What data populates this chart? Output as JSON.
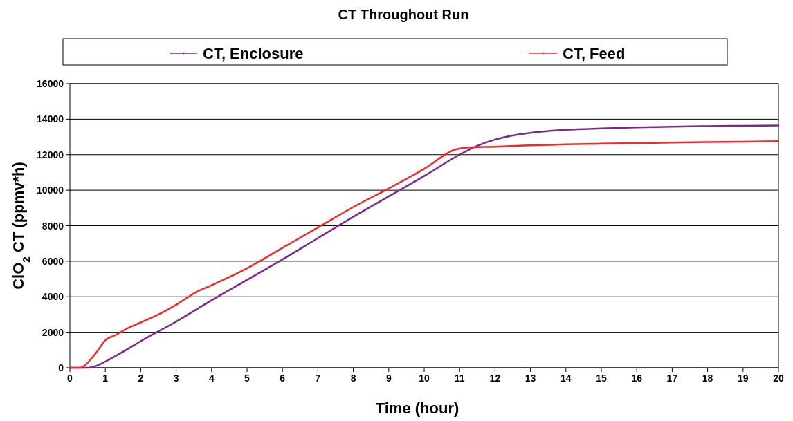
{
  "chart_data": {
    "type": "line",
    "title": "CT Throughout Run",
    "xlabel": "Time (hour)",
    "ylabel": "ClO$_{2}$ CT (ppmv*h)",
    "xlim": [
      0,
      20
    ],
    "xticks": [
      0,
      1,
      2,
      3,
      4,
      5,
      6,
      7,
      8,
      9,
      10,
      11,
      12,
      13,
      14,
      15,
      16,
      17,
      18,
      19,
      20
    ],
    "ylim": [
      0,
      16000
    ],
    "yticks": [
      0,
      2000,
      4000,
      6000,
      8000,
      10000,
      12000,
      14000,
      16000
    ],
    "grid": "y",
    "legend": "top",
    "marker": "none",
    "line_style": "solid",
    "series": [
      {
        "name": "CT, Enclosure",
        "color": "#7b2a8a",
        "x": [
          0,
          0.5,
          0.8,
          1,
          1.5,
          2,
          3,
          4,
          5,
          6,
          7,
          8,
          9,
          10,
          11,
          11.5,
          12,
          12.5,
          13,
          14,
          15,
          16,
          17,
          18,
          19,
          20
        ],
        "values": [
          0,
          0,
          150,
          350,
          900,
          1500,
          2600,
          3800,
          4950,
          6100,
          7300,
          8500,
          9650,
          10800,
          12000,
          12500,
          12850,
          13080,
          13230,
          13400,
          13480,
          13540,
          13580,
          13610,
          13630,
          13640
        ]
      },
      {
        "name": "CT, Feed",
        "color": "#ee2a2a",
        "x": [
          0,
          0.3,
          0.4,
          0.6,
          0.8,
          1,
          1.3,
          1.6,
          2,
          2.5,
          3,
          3.6,
          4,
          5,
          6,
          7,
          8,
          9,
          10,
          10.9,
          11.2,
          12,
          13,
          14,
          15,
          16,
          17,
          18,
          19,
          20
        ],
        "values": [
          0,
          0,
          100,
          500,
          1000,
          1550,
          1850,
          2200,
          2550,
          3000,
          3550,
          4300,
          4650,
          5600,
          6750,
          7900,
          9050,
          10100,
          11200,
          12300,
          12400,
          12450,
          12530,
          12580,
          12620,
          12650,
          12680,
          12710,
          12730,
          12760
        ]
      }
    ]
  }
}
